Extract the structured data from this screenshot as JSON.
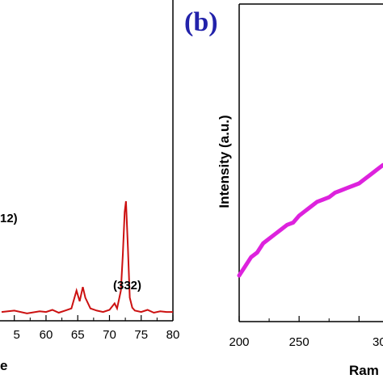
{
  "chart_data": [
    {
      "type": "line",
      "panel": "a",
      "xlabel_visible": "e",
      "ylabel": "",
      "xlim": [
        53,
        80
      ],
      "ylim": [
        0,
        100
      ],
      "x_ticks": [
        "5",
        "60",
        "65",
        "70",
        "75",
        "80"
      ],
      "series_color": "#cc1111",
      "x": [
        53,
        55,
        57,
        59,
        60,
        61,
        62,
        63,
        64,
        64.8,
        65.3,
        65.8,
        66.2,
        67,
        68,
        69,
        70,
        70.8,
        71.2,
        71.8,
        72.1,
        72.4,
        72.6,
        72.9,
        73.2,
        73.6,
        74,
        75,
        76,
        77,
        78,
        79,
        80
      ],
      "y": [
        1,
        1.2,
        0.8,
        1.1,
        1,
        1.3,
        0.9,
        1.2,
        1.5,
        4,
        2.5,
        4.5,
        3,
        1.5,
        1.2,
        1,
        1.3,
        2.2,
        1.5,
        4,
        9,
        15,
        16.5,
        10,
        3,
        1.6,
        1.2,
        1,
        1.3,
        0.9,
        1.1,
        1,
        1
      ],
      "annotations": [
        {
          "text": "(332)",
          "x": 72.5
        },
        {
          "text": "12)",
          "x": 53
        }
      ]
    },
    {
      "type": "line",
      "panel": "b",
      "panel_label": "(b)",
      "ylabel": "Intensity (a.u.)",
      "xlabel_visible": "Ram",
      "xlim": [
        200,
        320
      ],
      "ylim": [
        0,
        100
      ],
      "x_ticks": [
        "200",
        "250",
        "30"
      ],
      "series_color": "#dd22dd",
      "x": [
        200,
        205,
        210,
        215,
        220,
        225,
        230,
        235,
        240,
        245,
        250,
        255,
        260,
        265,
        270,
        275,
        280,
        285,
        290,
        295,
        300,
        305,
        310,
        315,
        320
      ],
      "y": [
        10,
        12,
        14,
        15,
        17,
        18,
        19,
        20,
        21,
        21.5,
        23,
        24,
        25,
        26,
        26.5,
        27,
        28,
        28.5,
        29,
        29.5,
        30,
        31,
        32,
        33,
        34
      ]
    }
  ]
}
